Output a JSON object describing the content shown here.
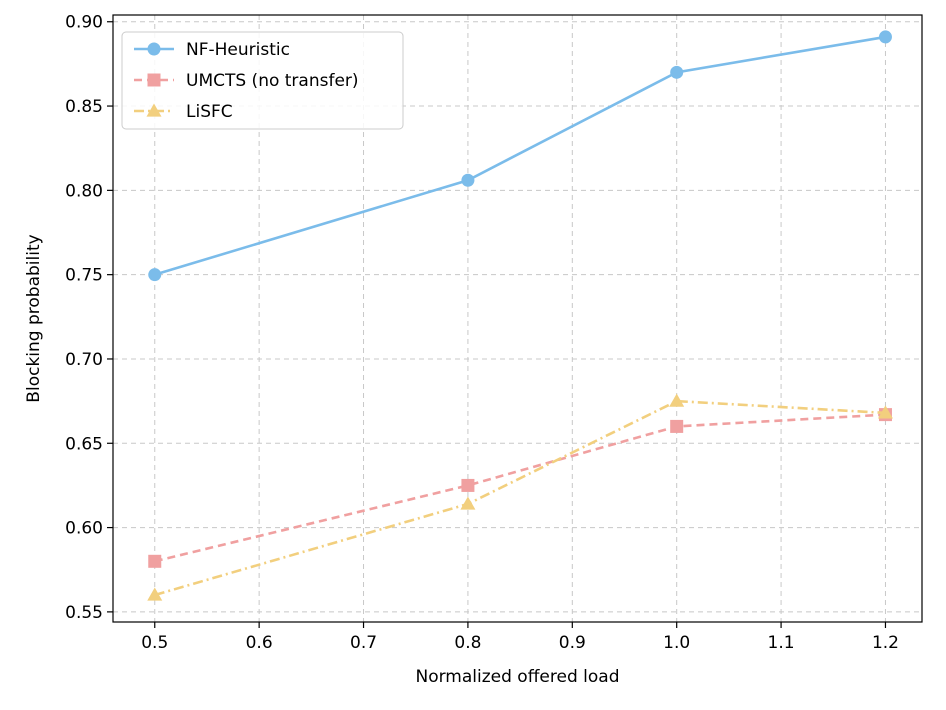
{
  "chart_data": {
    "type": "line",
    "title": "",
    "xlabel": "Normalized offered load",
    "ylabel": "Blocking probability",
    "xlim": [
      0.46,
      1.235
    ],
    "ylim": [
      0.544,
      0.904
    ],
    "xticks": [
      0.5,
      0.6,
      0.7,
      0.8,
      0.9,
      1.0,
      1.1,
      1.2
    ],
    "xtick_labels": [
      "0.5",
      "0.6",
      "0.7",
      "0.8",
      "0.9",
      "1.0",
      "1.1",
      "1.2"
    ],
    "yticks": [
      0.55,
      0.6,
      0.65,
      0.7,
      0.75,
      0.8,
      0.85,
      0.9
    ],
    "ytick_labels": [
      "0.55",
      "0.60",
      "0.65",
      "0.70",
      "0.75",
      "0.80",
      "0.85",
      "0.90"
    ],
    "grid": true,
    "legend_position": "top-left",
    "series": [
      {
        "name": "NF-Heuristic",
        "x": [
          0.5,
          0.8,
          1.0,
          1.2
        ],
        "y": [
          0.75,
          0.806,
          0.87,
          0.891
        ],
        "color": "#7bbcea",
        "marker": "circle",
        "linestyle": "solid"
      },
      {
        "name": "UMCTS (no transfer)",
        "x": [
          0.5,
          0.8,
          1.0,
          1.2
        ],
        "y": [
          0.58,
          0.625,
          0.66,
          0.667
        ],
        "color": "#f0a0a0",
        "marker": "square",
        "linestyle": "dashed"
      },
      {
        "name": "LiSFC",
        "x": [
          0.5,
          0.8,
          1.0,
          1.2
        ],
        "y": [
          0.56,
          0.614,
          0.675,
          0.668
        ],
        "color": "#f2cf7e",
        "marker": "triangle",
        "linestyle": "dashdot"
      }
    ]
  }
}
